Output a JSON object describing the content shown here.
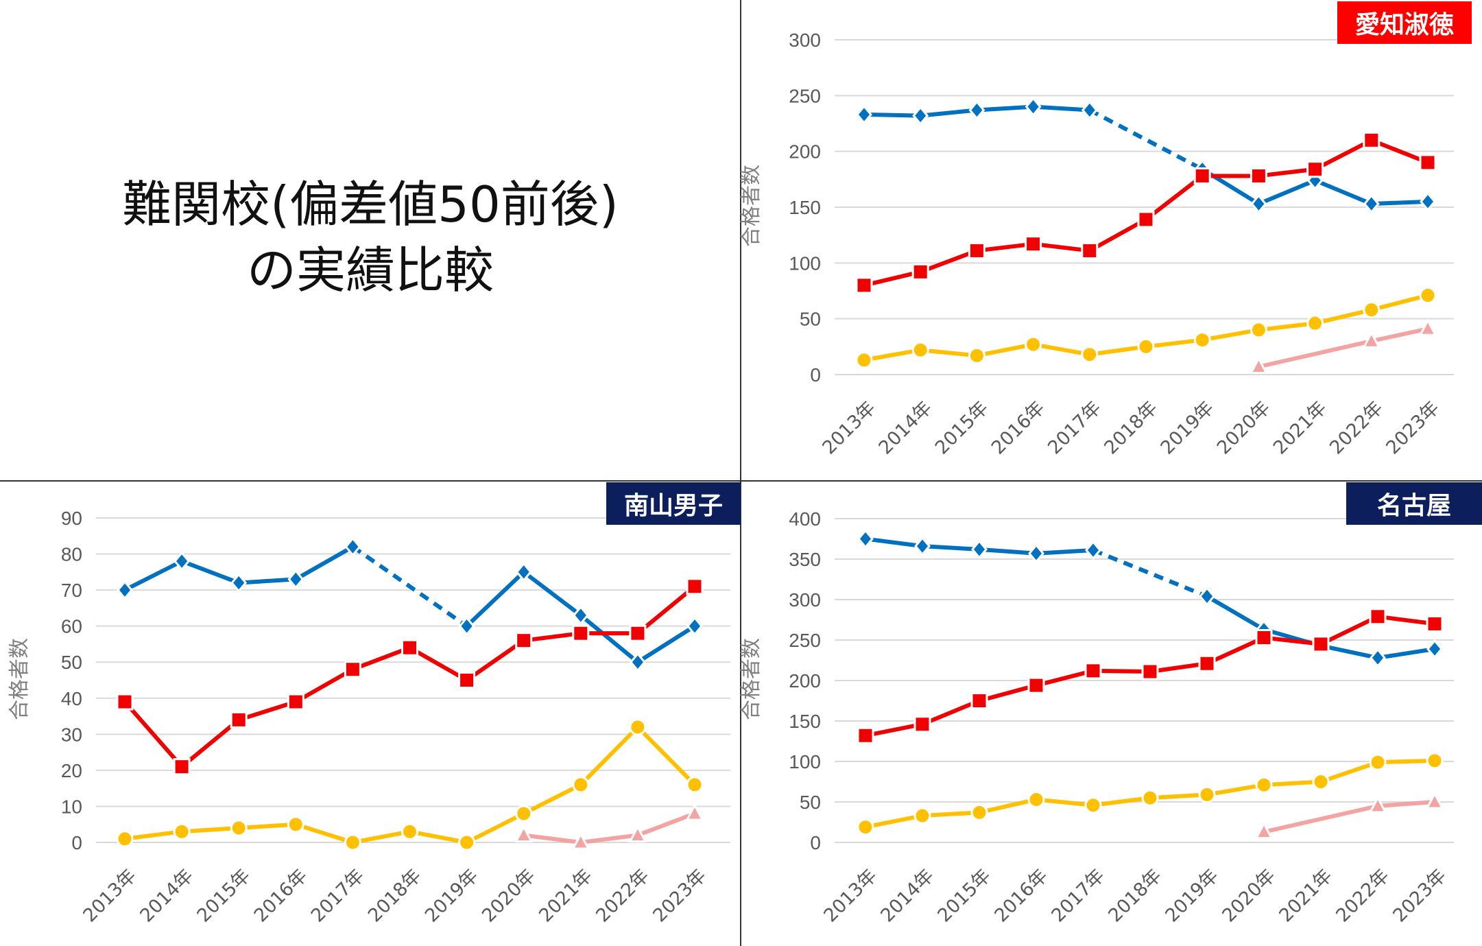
{
  "title": {
    "line1": "難関校(偏差値50前後)",
    "line2": "の実績比較"
  },
  "colors": {
    "blue": "#0070C0",
    "red": "#F00000",
    "yellow": "#FFC000",
    "pink": "#F4A3A3",
    "badge_red": "#FF0000",
    "badge_navy": "#0C1E5B",
    "grid": "#D9D9D9"
  },
  "chart_data": [
    {
      "type": "line",
      "title": "愛知淑徳",
      "badge_color": "#FF0000",
      "ylabel": "合格者数",
      "ylim": [
        0,
        300
      ],
      "yticks": [
        0,
        50,
        100,
        150,
        200,
        250,
        300
      ],
      "grid": true,
      "categories": [
        "2013年",
        "2014年",
        "2015年",
        "2016年",
        "2017年",
        "2018年",
        "2019年",
        "2020年",
        "2021年",
        "2022年",
        "2023年"
      ],
      "series": [
        {
          "color": "#0070C0",
          "marker": "diamond",
          "gap_line": "dashed",
          "values": [
            233,
            232,
            237,
            240,
            237,
            null,
            184,
            153,
            174,
            153,
            155
          ]
        },
        {
          "color": "#F00000",
          "marker": "square",
          "gap_line": "solid",
          "values": [
            80,
            92,
            111,
            117,
            111,
            139,
            178,
            178,
            184,
            210,
            190
          ]
        },
        {
          "color": "#FFC000",
          "marker": "circle",
          "gap_line": "solid",
          "values": [
            13,
            22,
            17,
            27,
            18,
            25,
            31,
            40,
            46,
            58,
            71
          ]
        },
        {
          "color": "#F4A3A3",
          "marker": "triangle",
          "gap_line": "solid",
          "values": [
            null,
            null,
            null,
            null,
            null,
            null,
            null,
            7,
            null,
            30,
            41
          ]
        }
      ]
    },
    {
      "type": "line",
      "title": "南山男子",
      "badge_color": "#0C1E5B",
      "ylabel": "合格者数",
      "ylim": [
        0,
        90
      ],
      "yticks": [
        0,
        10,
        20,
        30,
        40,
        50,
        60,
        70,
        80,
        90
      ],
      "grid": true,
      "categories": [
        "2013年",
        "2014年",
        "2015年",
        "2016年",
        "2017年",
        "2018年",
        "2019年",
        "2020年",
        "2021年",
        "2022年",
        "2023年"
      ],
      "series": [
        {
          "color": "#0070C0",
          "marker": "diamond",
          "gap_line": "dashed",
          "values": [
            70,
            78,
            72,
            73,
            82,
            null,
            60,
            75,
            63,
            50,
            60
          ]
        },
        {
          "color": "#F00000",
          "marker": "square",
          "gap_line": "solid",
          "values": [
            39,
            21,
            34,
            39,
            48,
            54,
            45,
            56,
            58,
            58,
            71
          ]
        },
        {
          "color": "#FFC000",
          "marker": "circle",
          "gap_line": "solid",
          "values": [
            1,
            3,
            4,
            5,
            0,
            3,
            0,
            8,
            16,
            32,
            16
          ]
        },
        {
          "color": "#F4A3A3",
          "marker": "triangle",
          "gap_line": "solid",
          "values": [
            null,
            null,
            null,
            null,
            null,
            null,
            null,
            2,
            0,
            2,
            8
          ]
        }
      ]
    },
    {
      "type": "line",
      "title": "名古屋",
      "badge_color": "#0C1E5B",
      "ylabel": "合格者数",
      "ylim": [
        0,
        400
      ],
      "yticks": [
        0,
        50,
        100,
        150,
        200,
        250,
        300,
        350,
        400
      ],
      "grid": true,
      "categories": [
        "2013年",
        "2014年",
        "2015年",
        "2016年",
        "2017年",
        "2018年",
        "2019年",
        "2020年",
        "2021年",
        "2022年",
        "2023年"
      ],
      "series": [
        {
          "color": "#0070C0",
          "marker": "diamond",
          "gap_line": "dashed",
          "values": [
            375,
            366,
            362,
            357,
            361,
            null,
            304,
            263,
            243,
            228,
            239
          ]
        },
        {
          "color": "#F00000",
          "marker": "square",
          "gap_line": "solid",
          "values": [
            132,
            146,
            175,
            194,
            212,
            211,
            221,
            253,
            245,
            279,
            270
          ]
        },
        {
          "color": "#FFC000",
          "marker": "circle",
          "gap_line": "solid",
          "values": [
            19,
            33,
            37,
            53,
            46,
            55,
            59,
            71,
            75,
            99,
            101
          ]
        },
        {
          "color": "#F4A3A3",
          "marker": "triangle",
          "gap_line": "solid",
          "values": [
            null,
            null,
            null,
            null,
            null,
            null,
            null,
            13,
            null,
            45,
            50
          ]
        }
      ]
    }
  ]
}
